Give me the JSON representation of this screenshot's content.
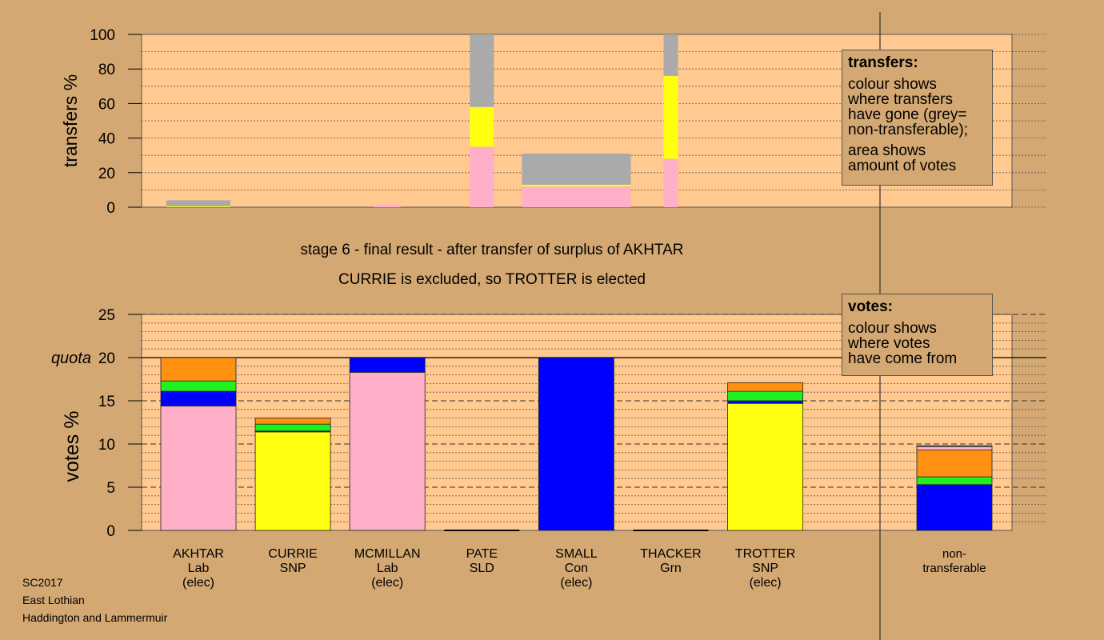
{
  "colors": {
    "background": "#d4a872",
    "plot": "#ffc98f",
    "Lab": "#ffb0c8",
    "SNP": "#ffff10",
    "Con": "#0000ff",
    "SLD": "#ff9010",
    "Grn": "#20f020",
    "nontransferable": "#aaaaaa"
  },
  "title_lines": [
    "stage 6 - final result - after transfer of surplus of AKHTAR",
    "CURRIE is excluded, so TROTTER is elected"
  ],
  "legend_transfers": {
    "title": "transfers:",
    "lines": [
      "colour shows",
      "where transfers",
      "have gone (grey=",
      "non-transferable);",
      "",
      "area shows",
      "amount of votes"
    ]
  },
  "legend_votes": {
    "title": "votes:",
    "lines": [
      "colour shows",
      "where votes",
      "have come from"
    ]
  },
  "footer": [
    "SC2017",
    "East Lothian",
    "Haddington and Lammermuir"
  ],
  "chart_data": [
    {
      "type": "bar",
      "ylabel": "transfers %",
      "ylim": [
        0,
        100
      ],
      "yticks": [
        0,
        20,
        40,
        60,
        80,
        100
      ],
      "grid": true,
      "bars": [
        {
          "candidate": "AKHTAR",
          "width_pct": 4,
          "segments": [
            {
              "party": "SNP",
              "value": 0.5
            },
            {
              "party": "nontransferable",
              "value": 3.5
            }
          ]
        },
        {
          "candidate": "MCMILLAN",
          "width_pct": 1.7,
          "segments": [
            {
              "party": "Lab",
              "value": 1.5
            }
          ]
        },
        {
          "candidate": "PATE",
          "width_pct": 1.5,
          "segments": [
            {
              "party": "Lab",
              "value": 35
            },
            {
              "party": "SNP",
              "value": 23
            },
            {
              "party": "nontransferable",
              "value": 42
            }
          ]
        },
        {
          "candidate": "SMALL",
          "width_pct": 6.8,
          "segments": [
            {
              "party": "Lab",
              "value": 12
            },
            {
              "party": "SNP",
              "value": 1
            },
            {
              "party": "nontransferable",
              "value": 18
            }
          ]
        },
        {
          "candidate": "THACKER",
          "width_pct": 0.9,
          "segments": [
            {
              "party": "Lab",
              "value": 28
            },
            {
              "party": "SNP",
              "value": 48
            },
            {
              "party": "nontransferable",
              "value": 24
            }
          ]
        }
      ]
    },
    {
      "type": "bar",
      "ylabel": "votes %",
      "ylim": [
        0,
        25
      ],
      "yticks": [
        0,
        5,
        10,
        15,
        20,
        25
      ],
      "quota": 20,
      "quota_label": "quota",
      "grid": true,
      "categories": [
        {
          "name": "AKHTAR",
          "party": "Lab",
          "status": "(elec)"
        },
        {
          "name": "CURRIE",
          "party": "SNP",
          "status": ""
        },
        {
          "name": "MCMILLAN",
          "party": "Lab",
          "status": "(elec)"
        },
        {
          "name": "PATE",
          "party": "SLD",
          "status": ""
        },
        {
          "name": "SMALL",
          "party": "Con",
          "status": "(elec)"
        },
        {
          "name": "THACKER",
          "party": "Grn",
          "status": ""
        },
        {
          "name": "TROTTER",
          "party": "SNP",
          "status": "(elec)"
        },
        {
          "name": "non-",
          "party": "transferable",
          "status": ""
        }
      ],
      "stacks": [
        [
          {
            "party": "Lab",
            "value": 14.4
          },
          {
            "party": "Con",
            "value": 1.7
          },
          {
            "party": "Grn",
            "value": 1.2
          },
          {
            "party": "SLD",
            "value": 2.7
          }
        ],
        [
          {
            "party": "SNP",
            "value": 11.4
          },
          {
            "party": "Con",
            "value": 0.1
          },
          {
            "party": "Grn",
            "value": 0.8
          },
          {
            "party": "SLD",
            "value": 0.7
          }
        ],
        [
          {
            "party": "Lab",
            "value": 18.3
          },
          {
            "party": "Con",
            "value": 1.7
          }
        ],
        [],
        [
          {
            "party": "Con",
            "value": 20.0
          }
        ],
        [],
        [
          {
            "party": "SNP",
            "value": 14.7
          },
          {
            "party": "Con",
            "value": 0.3
          },
          {
            "party": "Grn",
            "value": 1.1
          },
          {
            "party": "SLD",
            "value": 1.0
          }
        ],
        [
          {
            "party": "Con",
            "value": 5.3
          },
          {
            "party": "Grn",
            "value": 0.9
          },
          {
            "party": "SLD",
            "value": 3.1
          },
          {
            "party": "Lab",
            "value": 0.4
          },
          {
            "party": "nontransferable",
            "value": 0.1
          }
        ]
      ]
    }
  ]
}
